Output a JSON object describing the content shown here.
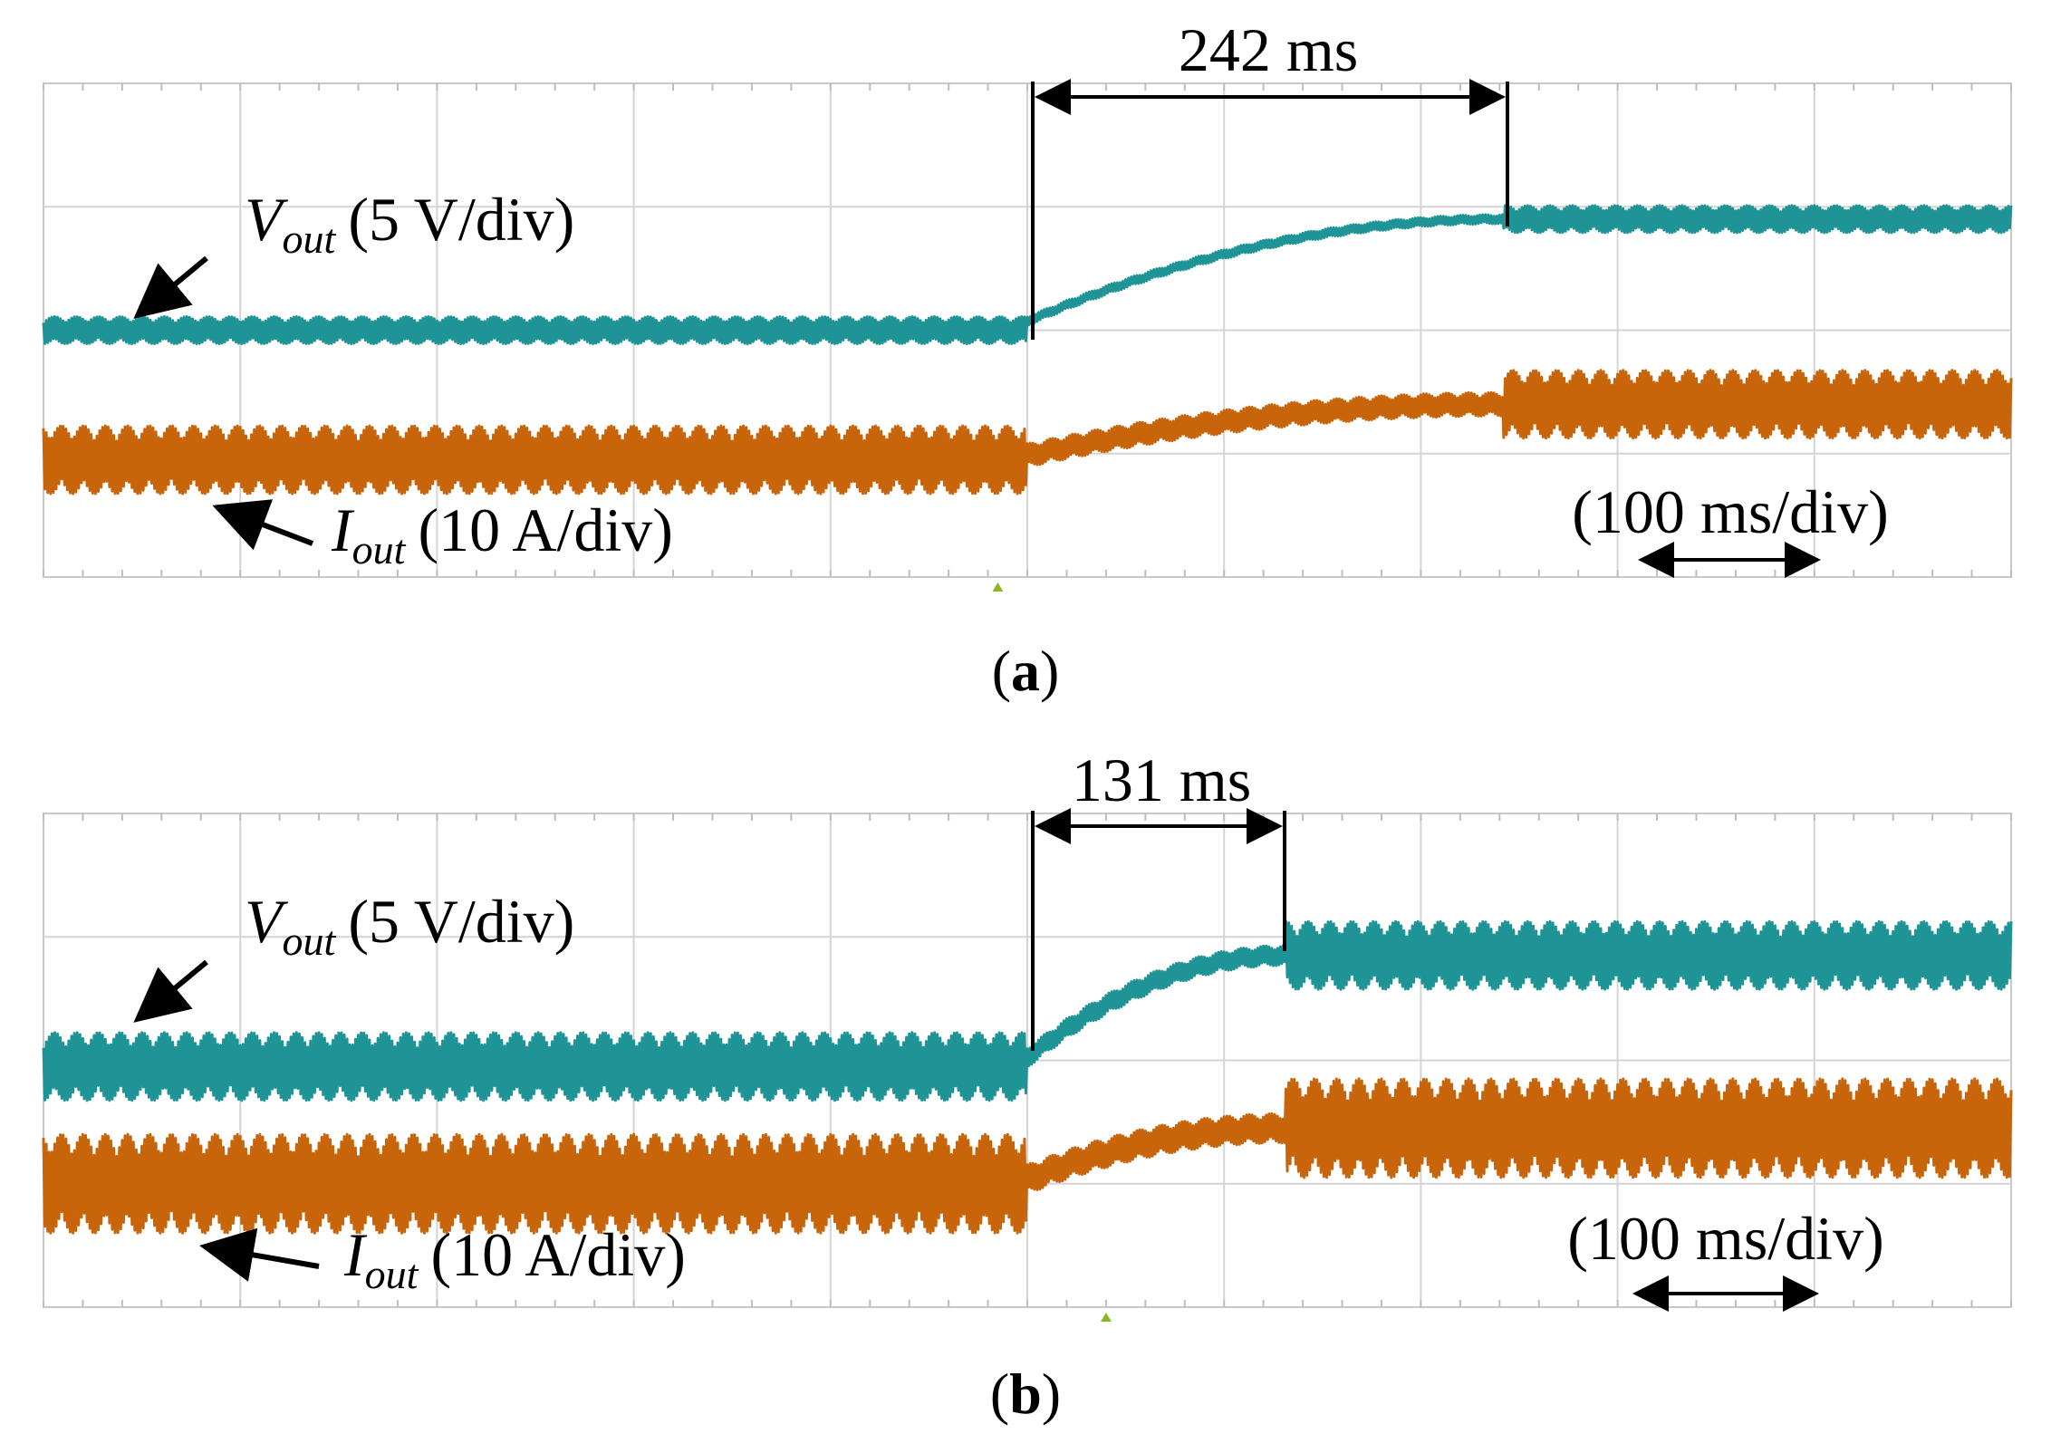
{
  "chart_data": [
    {
      "type": "line",
      "caption": "a",
      "time_scale": "(100 ms/div)",
      "annotation": "242 ms",
      "transient_duration_ms": 242,
      "step_time_div": 5,
      "x_divisions": 10,
      "y_divisions": 4,
      "series": [
        {
          "name": "Vout",
          "label_main": "V",
          "label_sub": "out",
          "scale": "(5 V/div)",
          "color": "#1e9496",
          "before_div": 2.0,
          "after_div": 2.9,
          "settle_div": 7.4,
          "ripple_div": 0.22
        },
        {
          "name": "Iout",
          "label_main": "I",
          "label_sub": "out",
          "scale": "(10 A/div)",
          "color": "#c8640a",
          "before_div": 0.95,
          "after_div": 1.4,
          "settle_div": 7.7,
          "ripple_div": 0.55
        }
      ]
    },
    {
      "type": "line",
      "caption": "b",
      "time_scale": "(100 ms/div)",
      "annotation": "131 ms",
      "transient_duration_ms": 131,
      "step_time_div": 5,
      "x_divisions": 10,
      "y_divisions": 4,
      "series": [
        {
          "name": "Vout",
          "label_main": "V",
          "label_sub": "out",
          "scale": "(5 V/div)",
          "color": "#1e9496",
          "before_div": 1.95,
          "after_div": 2.85,
          "settle_div": 6.45,
          "ripple_div": 0.55
        },
        {
          "name": "Iout",
          "label_main": "I",
          "label_sub": "out",
          "scale": "(10 A/div)",
          "color": "#c8640a",
          "before_div": 1.0,
          "after_div": 1.45,
          "settle_div": 6.45,
          "ripple_div": 0.8
        }
      ]
    }
  ]
}
